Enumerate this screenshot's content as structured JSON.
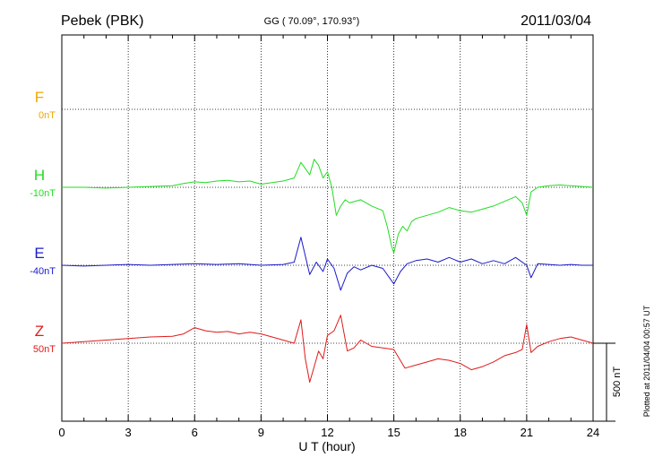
{
  "header": {
    "station": "Pebek (PBK)",
    "coords": "GG ( 70.09°, 170.93°)",
    "date": "2011/03/04"
  },
  "footer": {
    "plotted": "Plotted at 2011/04/04 00:57 UT"
  },
  "chart_data": {
    "type": "line",
    "xlabel": "U T (hour)",
    "ylabel": "",
    "xlim": [
      0,
      24
    ],
    "x_ticks": [
      0,
      3,
      6,
      9,
      12,
      15,
      18,
      21,
      24
    ],
    "scale_bar": {
      "label": "500 nT",
      "value_nT": 500
    },
    "grid": true,
    "colors": {
      "F": "#f0a800",
      "H": "#22dd22",
      "E": "#1a1acc",
      "Z": "#e01a1a"
    },
    "series": [
      {
        "name": "F",
        "offset_label": "0nT",
        "color": "#f0a800",
        "baseline_nT": 1500,
        "x": [],
        "values": []
      },
      {
        "name": "H",
        "offset_label": "-10nT",
        "color": "#22dd22",
        "baseline_nT": 1000,
        "x": [
          0,
          1,
          2,
          3,
          4,
          5,
          5.5,
          6,
          6.5,
          7,
          7.5,
          8,
          8.5,
          9,
          9.5,
          10,
          10.5,
          10.8,
          11.0,
          11.2,
          11.4,
          11.6,
          11.8,
          12.0,
          12.2,
          12.4,
          12.6,
          12.8,
          13.0,
          13.5,
          14.0,
          14.5,
          14.7,
          14.9,
          15.0,
          15.2,
          15.4,
          15.6,
          15.8,
          16.0,
          16.5,
          17.0,
          17.5,
          18.0,
          18.5,
          19.0,
          19.5,
          20.0,
          20.5,
          20.8,
          21.0,
          21.2,
          21.5,
          22.0,
          22.5,
          23.0,
          23.5,
          24.0
        ],
        "values": [
          0,
          0,
          -5,
          0,
          5,
          10,
          25,
          35,
          30,
          40,
          45,
          35,
          40,
          20,
          30,
          40,
          60,
          160,
          120,
          80,
          180,
          140,
          60,
          100,
          0,
          -180,
          -120,
          -80,
          -100,
          -80,
          -120,
          -150,
          -250,
          -380,
          -420,
          -300,
          -250,
          -280,
          -220,
          -200,
          -180,
          -160,
          -130,
          -150,
          -160,
          -140,
          -120,
          -90,
          -60,
          -100,
          -180,
          -30,
          0,
          10,
          15,
          10,
          5,
          0
        ]
      },
      {
        "name": "E",
        "offset_label": "-40nT",
        "color": "#1a1acc",
        "baseline_nT": 500,
        "x": [
          0,
          1,
          2,
          3,
          4,
          5,
          6,
          7,
          8,
          9,
          10,
          10.5,
          10.8,
          11.0,
          11.2,
          11.5,
          11.8,
          12.0,
          12.3,
          12.6,
          12.9,
          13.2,
          13.5,
          14.0,
          14.5,
          14.8,
          15.0,
          15.3,
          15.6,
          16.0,
          16.5,
          17.0,
          17.5,
          18.0,
          18.5,
          19.0,
          19.5,
          20.0,
          20.5,
          21.0,
          21.2,
          21.5,
          22.0,
          22.5,
          23.0,
          23.5,
          24.0
        ],
        "values": [
          0,
          -5,
          0,
          5,
          0,
          5,
          10,
          5,
          10,
          0,
          5,
          20,
          180,
          60,
          -60,
          20,
          -40,
          40,
          -20,
          -160,
          -50,
          -10,
          -30,
          0,
          -20,
          -80,
          -120,
          -40,
          10,
          30,
          40,
          20,
          50,
          20,
          40,
          10,
          30,
          10,
          50,
          0,
          -80,
          10,
          5,
          0,
          5,
          0,
          0
        ]
      },
      {
        "name": "Z",
        "offset_label": "50nT",
        "color": "#e01a1a",
        "baseline_nT": 0,
        "x": [
          0,
          1,
          2,
          3,
          4,
          5,
          5.5,
          6,
          6.5,
          7,
          7.5,
          8,
          8.5,
          9,
          9.5,
          10,
          10.5,
          10.8,
          11.0,
          11.2,
          11.4,
          11.6,
          11.8,
          12.0,
          12.3,
          12.6,
          12.9,
          13.2,
          13.5,
          14.0,
          14.5,
          15.0,
          15.5,
          16.0,
          16.5,
          17.0,
          17.5,
          18.0,
          18.5,
          19.0,
          19.5,
          20.0,
          20.5,
          20.8,
          21.0,
          21.2,
          21.5,
          22.0,
          22.5,
          23.0,
          23.5,
          24.0
        ],
        "values": [
          0,
          10,
          20,
          30,
          40,
          45,
          60,
          100,
          80,
          70,
          75,
          60,
          70,
          60,
          40,
          20,
          0,
          150,
          -100,
          -250,
          -150,
          -50,
          -100,
          50,
          80,
          180,
          -50,
          -30,
          20,
          -20,
          -30,
          -40,
          -160,
          -140,
          -120,
          -100,
          -110,
          -130,
          -170,
          -150,
          -120,
          -80,
          -60,
          -40,
          120,
          -60,
          -20,
          10,
          30,
          40,
          20,
          0
        ]
      }
    ]
  }
}
